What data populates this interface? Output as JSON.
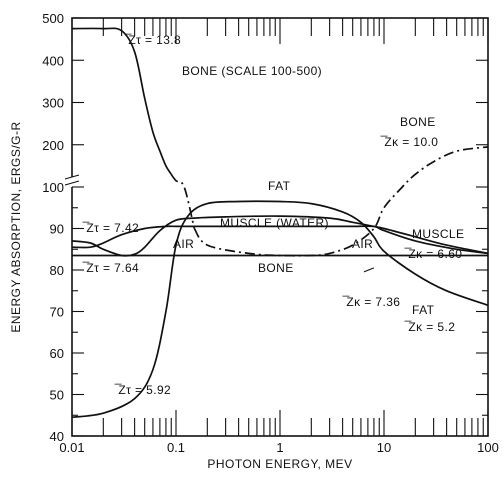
{
  "chart_data": {
    "type": "line",
    "title": "",
    "xlabel": "PHOTON ENERGY, MEV",
    "ylabel": "ENERGY ABSORPTION, ERGS/G-R",
    "x_scale": "log",
    "xlim": [
      0.01,
      100
    ],
    "x_ticks": [
      "0.01",
      "0.1",
      "1",
      "10",
      "100"
    ],
    "y_ticks_lower": [
      "40",
      "50",
      "60",
      "70",
      "80",
      "90",
      "100"
    ],
    "y_ticks_upper": [
      "200",
      "300",
      "400",
      "500"
    ],
    "y_lower_range": [
      40,
      100
    ],
    "y_upper_range": [
      100,
      500
    ],
    "grid": false,
    "series": [
      {
        "name": "FAT",
        "style": "solid",
        "x": [
          0.01,
          0.02,
          0.04,
          0.06,
          0.08,
          0.1,
          0.13,
          0.2,
          0.4,
          1,
          2,
          4,
          6,
          8,
          10,
          20,
          40,
          100
        ],
        "y": [
          44.5,
          45.5,
          49,
          56,
          70,
          86,
          93,
          96,
          96.5,
          96.5,
          96,
          94,
          91.5,
          88,
          84.5,
          79,
          75,
          71.5
        ]
      },
      {
        "name": "MUSCLE (WATER)",
        "style": "solid",
        "x": [
          0.01,
          0.015,
          0.02,
          0.03,
          0.04,
          0.05,
          0.07,
          0.1,
          0.15,
          0.3,
          1,
          3,
          5,
          8,
          10,
          20,
          40,
          100
        ],
        "y": [
          87,
          86.5,
          85,
          83.5,
          83.8,
          85.5,
          89.5,
          92,
          92.5,
          92.8,
          93,
          92.5,
          91.5,
          90.5,
          90,
          88,
          86,
          84
        ]
      },
      {
        "name": "AIR",
        "style": "solid",
        "x": [
          0.01,
          0.015,
          0.02,
          0.03,
          0.05,
          0.08,
          0.1,
          0.15,
          0.3,
          1,
          3,
          5,
          8,
          10,
          20,
          50,
          100
        ],
        "y": [
          85.5,
          85.5,
          86.5,
          88.5,
          90,
          90.5,
          90.5,
          90.5,
          90.5,
          90.5,
          90.5,
          90.5,
          90.5,
          89.5,
          87,
          85,
          84
        ]
      },
      {
        "name": "BONE (SCALE 100-500)",
        "style": "solid",
        "x": [
          0.01,
          0.02,
          0.03,
          0.04,
          0.05,
          0.06,
          0.07,
          0.08,
          0.09
        ],
        "y": [
          475,
          475,
          470,
          420,
          310,
          230,
          185,
          150,
          130
        ]
      },
      {
        "name": "BONE (SCALE 100-500)",
        "style": "dashdot",
        "x": [
          0.09,
          0.1,
          0.12,
          0.15
        ],
        "y": [
          130,
          115,
          100,
          90
        ]
      },
      {
        "name": "BONE",
        "style": "solid",
        "x": [
          0.01,
          0.1,
          1,
          10,
          100
        ],
        "y": [
          83.5,
          83.5,
          83.5,
          83.5,
          83.5
        ]
      },
      {
        "name": "BONE",
        "style": "dashdot",
        "x": [
          0.15,
          0.2,
          0.5,
          1,
          2,
          3,
          5,
          8,
          10,
          15,
          20,
          30,
          50,
          100
        ],
        "y": [
          90,
          86,
          84,
          83.5,
          83.5,
          84,
          86,
          90,
          95,
          100,
          130,
          160,
          185,
          195
        ]
      }
    ],
    "annotations": [
      {
        "text": "̅Zτ = 13.8"
      },
      {
        "text": "BONE (SCALE 100-500)"
      },
      {
        "text": "BONE"
      },
      {
        "text": "̅Zκ = 10.0"
      },
      {
        "text": "FAT"
      },
      {
        "text": "MUSCLE (WATER)"
      },
      {
        "text": "̅Zτ = 7.42"
      },
      {
        "text": "AIR"
      },
      {
        "text": "AIR"
      },
      {
        "text": "MUSCLE"
      },
      {
        "text": "̅Zκ = 6.60"
      },
      {
        "text": "̅Zτ = 7.64"
      },
      {
        "text": "BONE"
      },
      {
        "text": "̅Zκ = 7.36"
      },
      {
        "text": "FAT"
      },
      {
        "text": "̅Zκ = 5.2"
      },
      {
        "text": "̅Zτ = 5.92"
      }
    ]
  }
}
